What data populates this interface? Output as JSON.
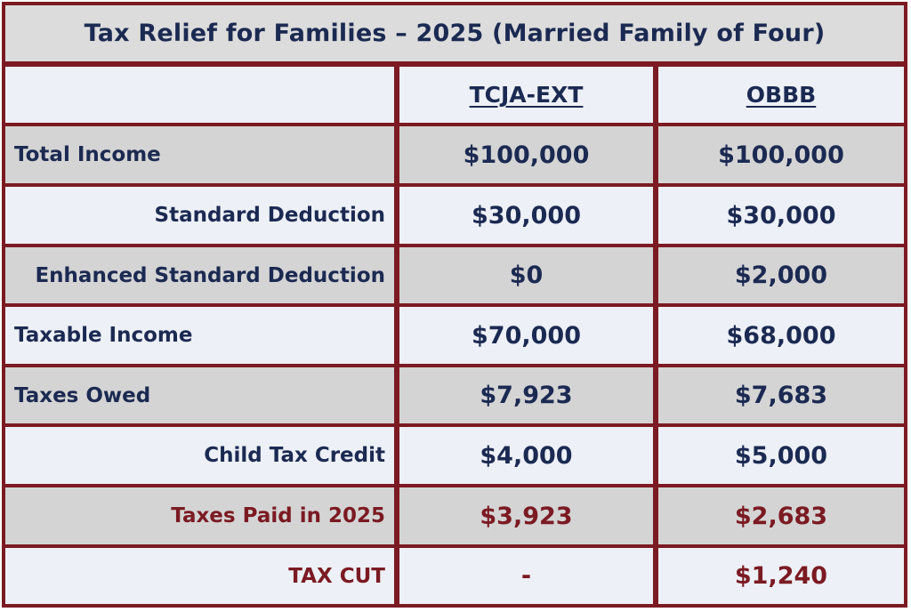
{
  "title": "Tax Relief for Families – 2025 (Married Family of Four)",
  "headers": [
    "",
    "TCJA-EXT",
    "OBBB"
  ],
  "rows": [
    {
      "label": "Total Income",
      "tcja": "$100,000",
      "obbb": "$100,000"
    },
    {
      "label": "Standard Deduction",
      "tcja": "$30,000",
      "obbb": "$30,000"
    },
    {
      "label": "Enhanced Standard Deduction",
      "tcja": "$0",
      "obbb": "$2,000"
    },
    {
      "label": "Taxable Income",
      "tcja": "$70,000",
      "obbb": "$68,000"
    },
    {
      "label": "Taxes Owed",
      "tcja": "$7,923",
      "obbb": "$7,683"
    },
    {
      "label": "Child Tax Credit",
      "tcja": "$4,000",
      "obbb": "$5,000"
    },
    {
      "label": "Taxes Paid in 2025",
      "tcja": "$3,923",
      "obbb": "$2,683"
    },
    {
      "label": "TAX CUT",
      "tcja": "-",
      "obbb": "$1,240"
    }
  ],
  "colors": {
    "border": "#7b1a22",
    "text_navy": "#1b2a52",
    "text_red": "#7b1a22",
    "row_light": "#edf0f6",
    "row_gray": "#d4d4d4"
  }
}
